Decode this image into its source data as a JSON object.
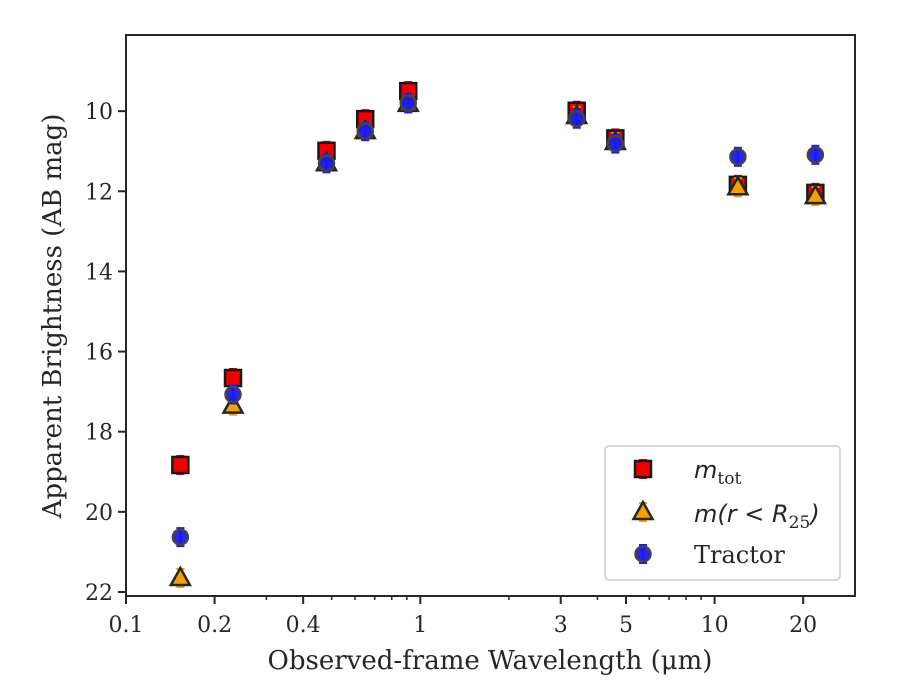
{
  "chart_data": {
    "type": "scatter",
    "title": "",
    "xlabel": "Observed-frame Wavelength (μm)",
    "ylabel": "Apparent Brightness (AB mag)",
    "xscale": "log",
    "xlim": [
      0.1,
      30
    ],
    "ylim": [
      22.1,
      8.1
    ],
    "y_inverted": true,
    "x_ticks": [
      0.1,
      0.2,
      0.4,
      1,
      3,
      5,
      10,
      20
    ],
    "x_tick_labels": [
      "0.1",
      "0.2",
      "0.4",
      "1",
      "3",
      "5",
      "10",
      "20"
    ],
    "y_ticks": [
      10,
      12,
      14,
      16,
      18,
      20,
      22
    ],
    "y_tick_labels": [
      "10",
      "12",
      "14",
      "16",
      "18",
      "20",
      "22"
    ],
    "grid": false,
    "legend_position": "bottom-right",
    "series": [
      {
        "key": "mtot",
        "legend_main": "m",
        "legend_sub": "tot",
        "marker": "square",
        "color": "#ee0000",
        "errorbar_color": "#cc0000",
        "x": [
          0.153,
          0.231,
          0.48,
          0.65,
          0.91,
          3.4,
          4.6,
          12.0,
          22.0
        ],
        "y": [
          18.83,
          16.66,
          10.99,
          10.2,
          9.5,
          9.99,
          10.68,
          11.84,
          12.04
        ]
      },
      {
        "key": "mr25",
        "legend_main": "m",
        "legend_paren": "(r < R",
        "legend_sub": "25",
        "legend_close": ")",
        "marker": "triangle",
        "color": "#f5a000",
        "errorbar_color": "#f5a000",
        "x": [
          0.153,
          0.231,
          0.48,
          0.65,
          0.91,
          3.4,
          4.6,
          12.0,
          22.0
        ],
        "y": [
          21.65,
          17.35,
          11.3,
          10.5,
          9.82,
          10.12,
          10.77,
          11.9,
          12.12
        ]
      },
      {
        "key": "tractor",
        "legend_label": "Tractor",
        "marker": "circle",
        "color": "#1a1aee",
        "errorbar_color": "#1a1aee",
        "x": [
          0.153,
          0.231,
          0.48,
          0.65,
          0.91,
          3.4,
          4.6,
          12.0,
          22.0
        ],
        "y": [
          20.63,
          17.07,
          11.3,
          10.5,
          9.8,
          10.19,
          10.81,
          11.14,
          11.09
        ]
      }
    ]
  }
}
